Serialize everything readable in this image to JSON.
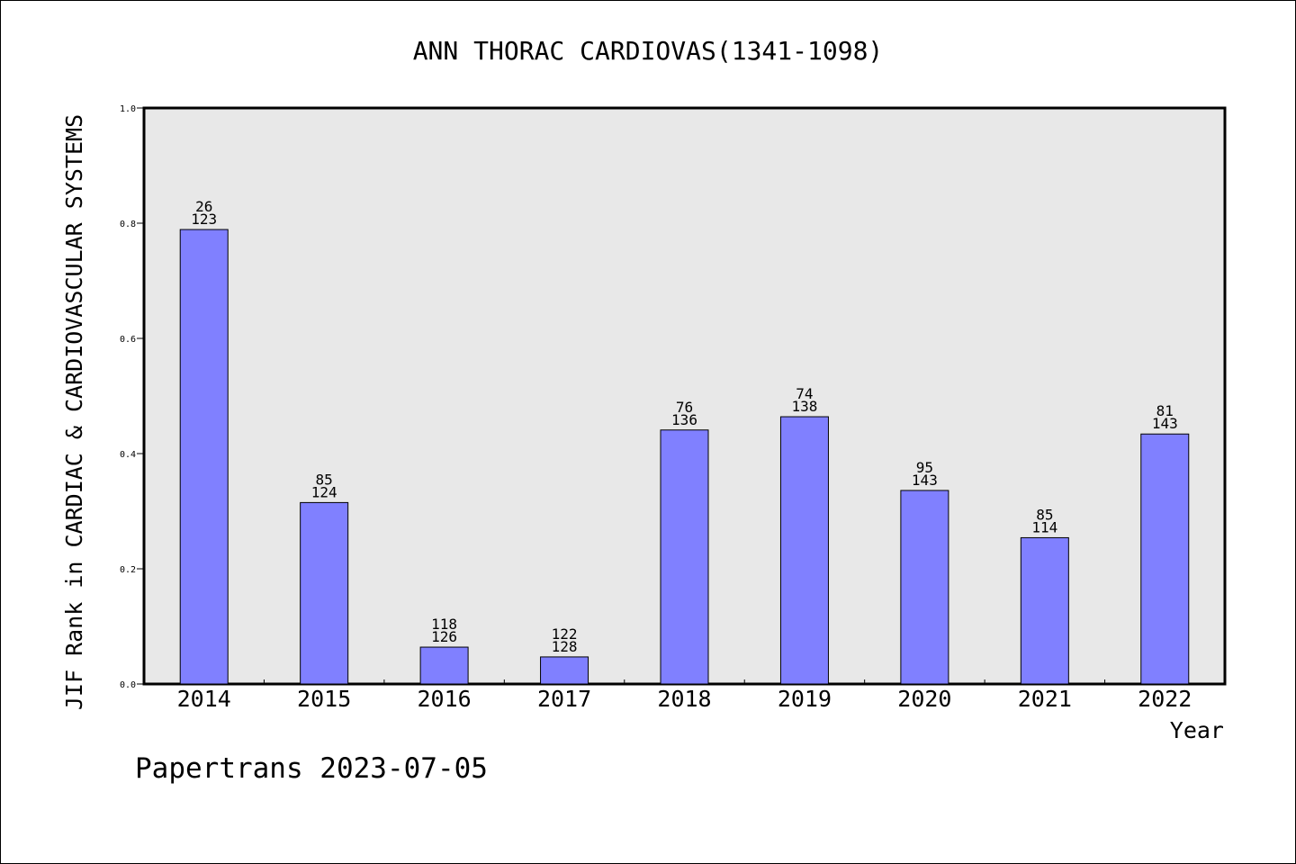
{
  "chart_data": {
    "type": "bar",
    "title": "ANN THORAC CARDIOVAS(1341-1098)",
    "xlabel": "Year",
    "ylabel": "JIF Rank in CARDIAC & CARDIOVASCULAR SYSTEMS",
    "ylim": [
      0,
      1.0
    ],
    "yticks": [
      "0.0",
      "0.2",
      "0.4",
      "0.6",
      "0.8",
      "1.0"
    ],
    "grid": false,
    "categories": [
      "2014",
      "2015",
      "2016",
      "2017",
      "2018",
      "2019",
      "2020",
      "2021",
      "2022"
    ],
    "values": [
      0.789,
      0.315,
      0.064,
      0.047,
      0.441,
      0.464,
      0.336,
      0.254,
      0.434
    ],
    "rank_labels": [
      "26",
      "85",
      "118",
      "122",
      "76",
      "74",
      "95",
      "85",
      "81"
    ],
    "total_labels": [
      "123",
      "124",
      "126",
      "128",
      "136",
      "138",
      "143",
      "114",
      "143"
    ],
    "colors": {
      "bar": "#8080ff",
      "plot_bg": "#e8e8e8"
    }
  },
  "footer": {
    "text": "Papertrans 2023-07-05"
  }
}
